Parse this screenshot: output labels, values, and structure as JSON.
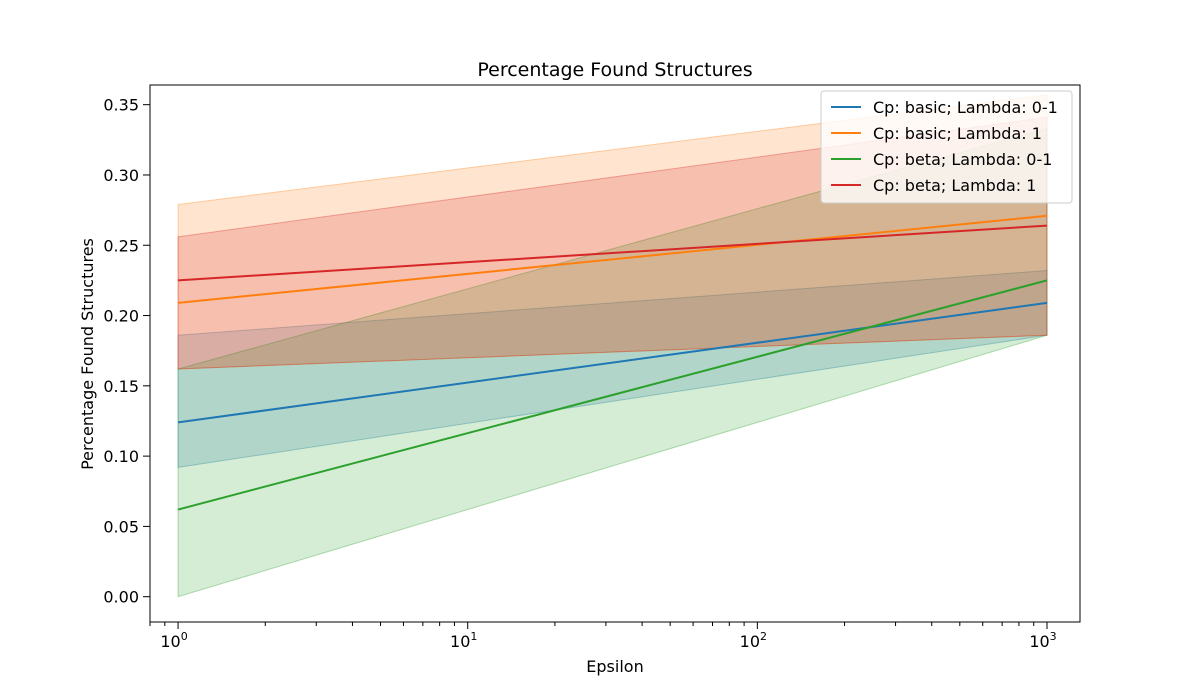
{
  "chart_data": {
    "type": "line",
    "title": "Percentage Found Structures",
    "xlabel": "Epsilon",
    "ylabel": "Percentage Found Structures",
    "xscale": "log",
    "x": [
      1,
      1000
    ],
    "xlim": [
      0.8,
      1300
    ],
    "ylim": [
      -0.018,
      0.364
    ],
    "xticks": [
      1,
      10,
      100,
      1000
    ],
    "xtick_labels": [
      {
        "base": "10",
        "exp": "0"
      },
      {
        "base": "10",
        "exp": "1"
      },
      {
        "base": "10",
        "exp": "2"
      },
      {
        "base": "10",
        "exp": "3"
      }
    ],
    "yticks": [
      0.0,
      0.05,
      0.1,
      0.15,
      0.2,
      0.25,
      0.3,
      0.35
    ],
    "ytick_labels": [
      "0.00",
      "0.05",
      "0.10",
      "0.15",
      "0.20",
      "0.25",
      "0.30",
      "0.35"
    ],
    "grid": false,
    "legend_position": "top-right",
    "series": [
      {
        "name": "Cp: basic; Lambda: 0-1",
        "color": "#1f77b4",
        "values": [
          0.124,
          0.209
        ],
        "lower": [
          0.092,
          0.186
        ],
        "upper": [
          0.186,
          0.232
        ]
      },
      {
        "name": "Cp: basic; Lambda: 1",
        "color": "#ff7f0e",
        "values": [
          0.209,
          0.271
        ],
        "lower": [
          0.162,
          0.186
        ],
        "upper": [
          0.279,
          0.357
        ]
      },
      {
        "name": "Cp: beta; Lambda: 0-1",
        "color": "#2ca02c",
        "values": [
          0.062,
          0.225
        ],
        "lower": [
          0.0,
          0.186
        ],
        "upper": [
          0.162,
          0.333
        ]
      },
      {
        "name": "Cp: beta; Lambda: 1",
        "color": "#d62728",
        "values": [
          0.225,
          0.264
        ],
        "lower": [
          0.162,
          0.186
        ],
        "upper": [
          0.256,
          0.341
        ]
      }
    ]
  }
}
